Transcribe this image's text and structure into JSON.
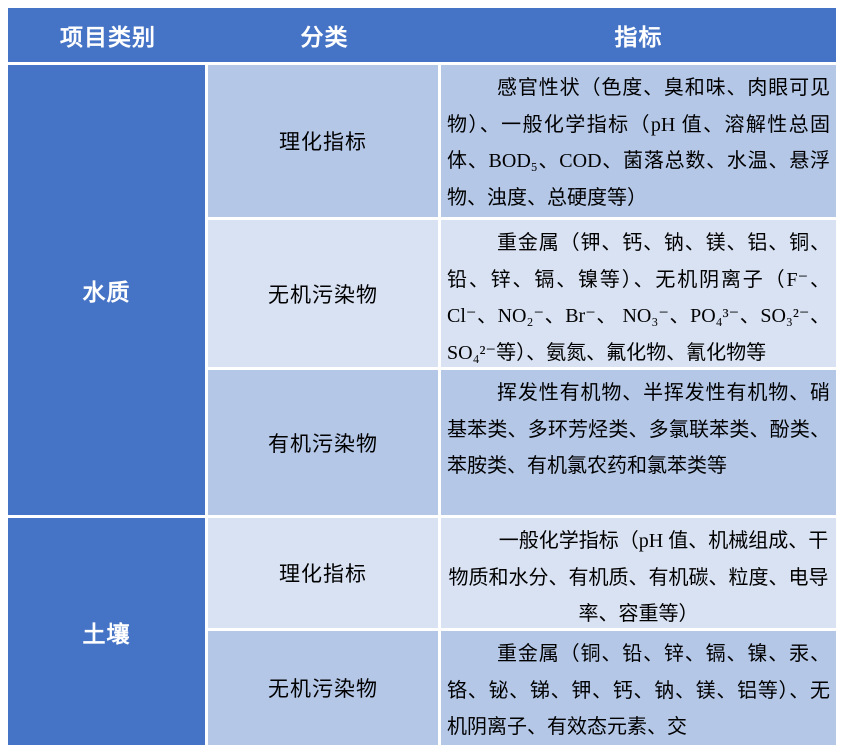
{
  "table": {
    "headers": [
      "项目类别",
      "分类",
      "指标"
    ],
    "groups": [
      {
        "category": "水质",
        "rows": [
          {
            "classification": "理化指标",
            "indicator": "感官性状（色度、臭和味、肉眼可见物）、一般化学指标（pH 值、溶解性总固体、BOD₅、COD、菌落总数、水温、悬浮物、浊度、总硬度等）"
          },
          {
            "classification": "无机污染物",
            "indicator": "重金属（钾、钙、钠、镁、铝、铜、铅、锌、镉、镍等）、无机阴离子（F⁻、Cl⁻、NO₂⁻、Br⁻、 NO₃⁻、PO₄³⁻、SO₃²⁻、SO₄²⁻等）、氨氮、氟化物、氰化物等"
          },
          {
            "classification": "有机污染物",
            "indicator": "挥发性有机物、半挥发性有机物、硝基苯类、多环芳烃类、多氯联苯类、酚类、苯胺类、有机氯农药和氯苯类等"
          }
        ]
      },
      {
        "category": "土壤",
        "rows": [
          {
            "classification": "理化指标",
            "indicator": "一般化学指标（pH 值、机械组成、干物质和水分、有机质、有机碳、粒度、电导率、容重等）"
          },
          {
            "classification": "无机污染物",
            "indicator": "重金属（铜、铅、锌、镉、镍、汞、铬、铋、锑、钾、钙、钠、镁、铝等）、无机阴离子、有效态元素、交"
          }
        ]
      }
    ]
  },
  "colors": {
    "header_blue": "#4573C5",
    "band_medium": "#B4C7E7",
    "band_light": "#D9E2F3",
    "header_text": "#FFFFFF",
    "body_text": "#000000",
    "page_bg": "#FFFFFF"
  }
}
